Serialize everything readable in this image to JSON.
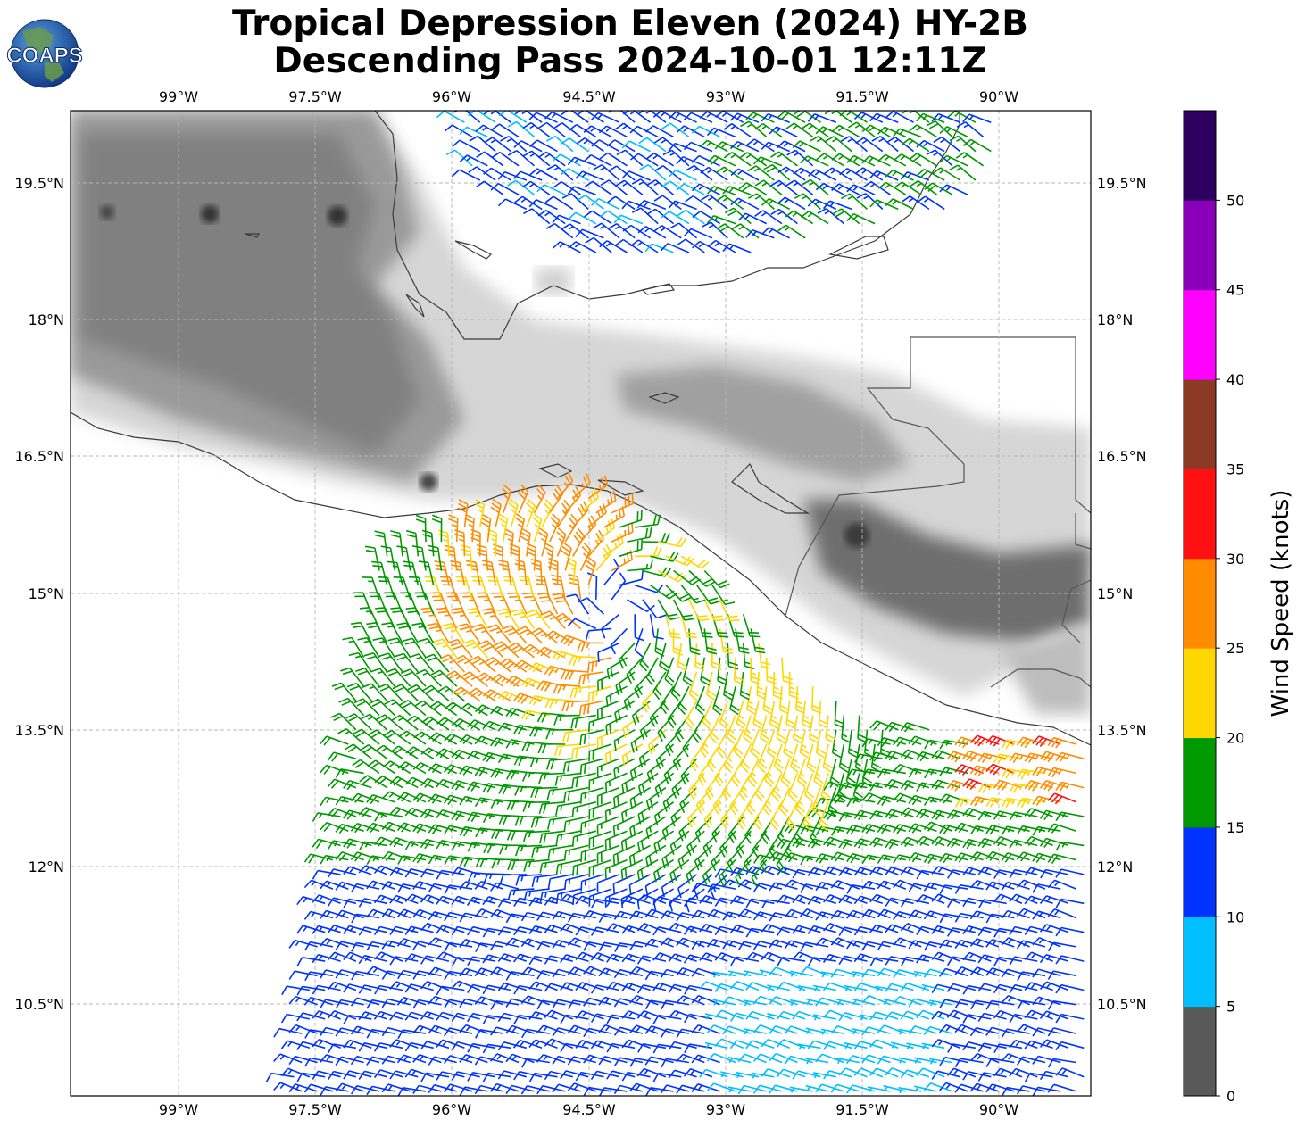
{
  "title": {
    "line1": "Tropical Depression Eleven (2024) HY-2B",
    "line2": "Descending Pass 2024-10-01 12:11Z"
  },
  "logo": {
    "text": "COAPS"
  },
  "axes": {
    "lon_labels": [
      "99°W",
      "97.5°W",
      "96°W",
      "94.5°W",
      "93°W",
      "91.5°W",
      "90°W"
    ],
    "lat_labels": [
      "19.5°N",
      "18°N",
      "16.5°N",
      "15°N",
      "13.5°N",
      "12°N",
      "10.5°N"
    ]
  },
  "colorbar": {
    "label": "Wind Speed (knots)",
    "ticks": [
      "0",
      "5",
      "10",
      "15",
      "20",
      "25",
      "30",
      "35",
      "40",
      "45",
      "50"
    ],
    "colors": [
      "#595959",
      "#00bfff",
      "#0033ff",
      "#009900",
      "#ffd700",
      "#ff8c00",
      "#ff1111",
      "#8b3a26",
      "#ff00ff",
      "#8a00b8",
      "#2e0060"
    ]
  },
  "chart_data": {
    "type": "map",
    "extent": {
      "lon": [
        -100.2,
        -89.0
      ],
      "lat": [
        9.4,
        20.3
      ]
    },
    "grid": true,
    "storm_center": {
      "lon": -94.2,
      "lat": 14.8
    },
    "speed_units": "knots"
  }
}
